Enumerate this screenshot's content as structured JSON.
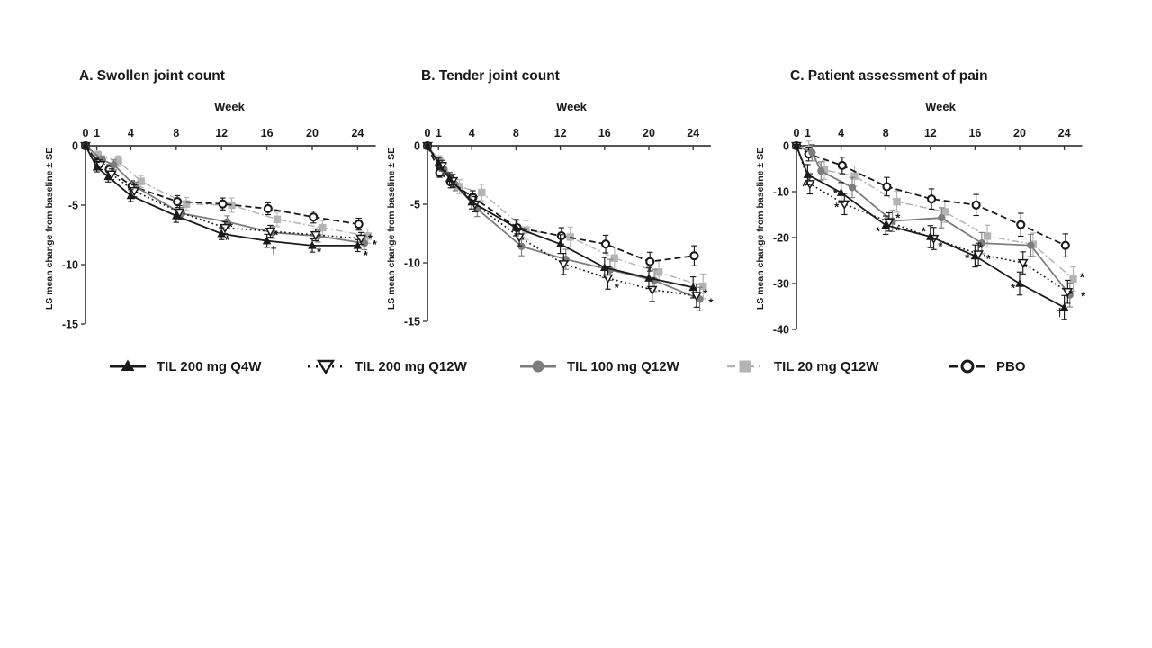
{
  "figure": {
    "background": "#ffffff",
    "colors": {
      "black": "#1a1a1a",
      "dark_gray": "#7d7d7d",
      "light_gray": "#b4b4b4",
      "axis": "#3c3c3c"
    },
    "legend": [
      {
        "label": "TIL 200 mg Q4W",
        "marker": "triangle-up-filled",
        "line": "solid",
        "color": "black"
      },
      {
        "label": "TIL 200 mg Q12W",
        "marker": "triangle-down-open",
        "line": "dotted",
        "color": "black"
      },
      {
        "label": "TIL 100 mg Q12W",
        "marker": "circle-filled",
        "line": "solid",
        "color": "dark_gray"
      },
      {
        "label": "TIL 20 mg Q12W",
        "marker": "square-filled",
        "line": "dashdot",
        "color": "light_gray"
      },
      {
        "label": "PBO",
        "marker": "circle-open",
        "line": "dashed",
        "color": "black"
      }
    ]
  },
  "chart_data": [
    {
      "type": "line",
      "title": "A. Swollen joint count",
      "xlabel": "Week",
      "ylabel": "LS mean change from baseline ± SE",
      "xticks": [
        0,
        1,
        4,
        8,
        12,
        16,
        20,
        24
      ],
      "yticks": [
        0,
        -5,
        -10,
        -15
      ],
      "xlim": [
        0,
        25.6
      ],
      "ylim": [
        -15,
        0
      ],
      "grid": false,
      "series": [
        {
          "name": "TIL 200 mg Q4W",
          "marker": "triangle-up-filled",
          "line": "solid",
          "color": "black",
          "x": [
            0,
            1,
            2,
            4,
            8,
            12,
            16,
            20,
            24
          ],
          "y": [
            0,
            -1.8,
            -2.6,
            -4.2,
            -5.9,
            -7.4,
            -8.0,
            -8.4,
            -8.4
          ],
          "se": [
            0.15,
            0.4,
            0.45,
            0.5,
            0.55,
            0.5,
            0.55,
            0.55,
            0.5
          ]
        },
        {
          "name": "TIL 200 mg Q12W",
          "marker": "triangle-down-open",
          "line": "dotted",
          "color": "black",
          "x": [
            0,
            1.3,
            2.3,
            4.3,
            8.3,
            12.3,
            16.3,
            20.3,
            24.3
          ],
          "y": [
            0,
            -1.6,
            -2.4,
            -3.8,
            -5.6,
            -6.9,
            -7.2,
            -7.5,
            -7.8
          ],
          "se": [
            0.15,
            0.4,
            0.45,
            0.5,
            0.55,
            0.5,
            0.5,
            0.5,
            0.5
          ]
        },
        {
          "name": "TIL 100 mg Q12W",
          "marker": "circle-filled",
          "line": "solid",
          "color": "dark_gray",
          "x": [
            0,
            1.5,
            2.5,
            4.5,
            8.5,
            12.5,
            16.5,
            20.5,
            24.6
          ],
          "y": [
            0,
            -1.2,
            -1.6,
            -3.5,
            -5.7,
            -6.4,
            -7.3,
            -7.6,
            -8.2
          ],
          "se": [
            0.15,
            0.35,
            0.4,
            0.45,
            0.5,
            0.5,
            0.5,
            0.5,
            0.55
          ]
        },
        {
          "name": "TIL 20 mg Q12W",
          "marker": "square-filled",
          "line": "dashdot",
          "color": "light_gray",
          "x": [
            0,
            1.1,
            2.9,
            4.9,
            8.9,
            12.9,
            16.9,
            20.9,
            24.9
          ],
          "y": [
            0,
            -0.8,
            -1.3,
            -3.0,
            -4.9,
            -5.0,
            -6.2,
            -6.9,
            -7.6
          ],
          "se": [
            0.15,
            0.35,
            0.45,
            0.5,
            0.55,
            0.6,
            0.6,
            0.6,
            0.6
          ]
        },
        {
          "name": "PBO",
          "marker": "circle-open",
          "line": "dashed",
          "color": "black",
          "x": [
            0,
            1.1,
            2.1,
            4.1,
            8.1,
            12.1,
            16.1,
            20.1,
            24.1
          ],
          "y": [
            0,
            -1.4,
            -2.0,
            -3.4,
            -4.7,
            -4.9,
            -5.3,
            -6.0,
            -6.6
          ],
          "se": [
            0.15,
            0.35,
            0.4,
            0.45,
            0.5,
            0.5,
            0.5,
            0.5,
            0.5
          ]
        }
      ],
      "annotations": [
        {
          "x": 12.8,
          "y": -6.8,
          "t": "*"
        },
        {
          "x": 12.5,
          "y": -7.9,
          "t": "*"
        },
        {
          "x": 16.8,
          "y": -7.5,
          "t": "*"
        },
        {
          "x": 16.6,
          "y": -8.8,
          "t": "†"
        },
        {
          "x": 20.6,
          "y": -8.9,
          "t": "*"
        },
        {
          "x": 25.1,
          "y": -7.8,
          "t": "*"
        },
        {
          "x": 25.5,
          "y": -8.3,
          "t": "*"
        },
        {
          "x": 24.7,
          "y": -9.2,
          "t": "*"
        }
      ]
    },
    {
      "type": "line",
      "title": "B. Tender joint count",
      "xlabel": "Week",
      "ylabel": "LS mean change from baseline ± SE",
      "xticks": [
        0,
        1,
        4,
        8,
        12,
        16,
        20,
        24
      ],
      "yticks": [
        0,
        -5,
        -10,
        -15
      ],
      "xlim": [
        0,
        25.6
      ],
      "ylim": [
        -15,
        0
      ],
      "grid": false,
      "series": [
        {
          "name": "TIL 200 mg Q4W",
          "marker": "triangle-up-filled",
          "line": "solid",
          "color": "black",
          "x": [
            0,
            1,
            2,
            4,
            8,
            12,
            16,
            20,
            24
          ],
          "y": [
            0,
            -1.5,
            -2.8,
            -4.8,
            -7.0,
            -8.4,
            -10.4,
            -11.3,
            -12.1
          ],
          "se": [
            0.15,
            0.45,
            0.5,
            0.6,
            0.7,
            0.8,
            0.85,
            0.9,
            0.9
          ]
        },
        {
          "name": "TIL 200 mg Q12W",
          "marker": "triangle-down-open",
          "line": "dotted",
          "color": "black",
          "x": [
            0,
            1.3,
            2.3,
            4.3,
            8.3,
            12.3,
            16.3,
            20.3,
            24.3
          ],
          "y": [
            0,
            -1.7,
            -3.0,
            -5.0,
            -7.8,
            -10.1,
            -11.3,
            -12.3,
            -12.8
          ],
          "se": [
            0.15,
            0.45,
            0.55,
            0.65,
            0.75,
            0.9,
            0.95,
            1.0,
            1.0
          ]
        },
        {
          "name": "TIL 100 mg Q12W",
          "marker": "circle-filled",
          "line": "solid",
          "color": "dark_gray",
          "x": [
            0,
            1.5,
            2.5,
            4.5,
            8.5,
            12.5,
            16.5,
            20.5,
            24.6
          ],
          "y": [
            0,
            -2.0,
            -3.3,
            -5.4,
            -8.6,
            -9.7,
            -10.6,
            -11.5,
            -13.1
          ],
          "se": [
            0.15,
            0.45,
            0.55,
            0.65,
            0.8,
            0.85,
            0.9,
            0.95,
            1.0
          ]
        },
        {
          "name": "TIL 20 mg Q12W",
          "marker": "square-filled",
          "line": "dashdot",
          "color": "light_gray",
          "x": [
            0,
            1.1,
            2.9,
            4.9,
            8.9,
            12.9,
            16.9,
            20.9,
            24.9
          ],
          "y": [
            0,
            -1.3,
            -3.5,
            -4.0,
            -7.2,
            -7.8,
            -9.6,
            -10.8,
            -12.0
          ],
          "se": [
            0.15,
            0.45,
            0.6,
            0.7,
            0.8,
            0.85,
            0.95,
            1.0,
            1.05
          ]
        },
        {
          "name": "PBO",
          "marker": "circle-open",
          "line": "dashed",
          "color": "black",
          "x": [
            0,
            1.1,
            2.1,
            4.1,
            8.1,
            12.1,
            16.1,
            20.1,
            24.1
          ],
          "y": [
            0,
            -2.3,
            -3.1,
            -4.4,
            -7.0,
            -7.7,
            -8.4,
            -9.9,
            -9.4
          ],
          "se": [
            0.15,
            0.4,
            0.5,
            0.55,
            0.65,
            0.7,
            0.75,
            0.8,
            0.85
          ]
        }
      ],
      "annotations": [
        {
          "x": 17.1,
          "y": -12.1,
          "t": "*"
        },
        {
          "x": 25.1,
          "y": -12.6,
          "t": "*"
        },
        {
          "x": 25.6,
          "y": -13.4,
          "t": "*"
        }
      ]
    },
    {
      "type": "line",
      "title": "C. Patient assessment of pain",
      "xlabel": "Week",
      "ylabel": "LS mean change from baseline ± SE",
      "xticks": [
        0,
        1,
        4,
        8,
        12,
        16,
        20,
        24
      ],
      "yticks": [
        0,
        -10,
        -20,
        -30,
        -40
      ],
      "xlim": [
        0,
        25.6
      ],
      "ylim": [
        -40,
        0
      ],
      "grid": false,
      "series": [
        {
          "name": "TIL 200 mg Q4W",
          "marker": "triangle-up-filled",
          "line": "solid",
          "color": "black",
          "x": [
            0,
            1,
            4,
            8,
            12,
            16,
            20,
            24
          ],
          "y": [
            0,
            -6.3,
            -10.2,
            -17.3,
            -19.8,
            -24.0,
            -30.0,
            -35.2
          ],
          "se": [
            0.3,
            2.2,
            2.2,
            2.0,
            2.4,
            2.4,
            2.5,
            2.6
          ]
        },
        {
          "name": "TIL 200 mg Q12W",
          "marker": "triangle-down-open",
          "line": "dotted",
          "color": "black",
          "x": [
            0,
            1.2,
            4.3,
            8.3,
            12.3,
            16.3,
            20.3,
            24.3
          ],
          "y": [
            0,
            -8.3,
            -12.7,
            -16.6,
            -20.2,
            -23.6,
            -25.5,
            -31.8
          ],
          "se": [
            0.3,
            2.2,
            2.3,
            2.0,
            2.4,
            2.4,
            2.4,
            2.5
          ]
        },
        {
          "name": "TIL 100 mg Q12W",
          "marker": "circle-filled",
          "line": "solid",
          "color": "dark_gray",
          "x": [
            0,
            1.4,
            2.2,
            5,
            8.6,
            13,
            16.6,
            21,
            24.5
          ],
          "y": [
            0,
            -1.5,
            -5.5,
            -9.1,
            -16.4,
            -15.7,
            -21.2,
            -21.7,
            -32.5
          ],
          "se": [
            0.3,
            1.8,
            2.0,
            2.2,
            2.3,
            2.2,
            2.3,
            2.4,
            2.6
          ]
        },
        {
          "name": "TIL 20 mg Q12W",
          "marker": "square-filled",
          "line": "dashdot",
          "color": "light_gray",
          "x": [
            0,
            1.1,
            2.5,
            5.2,
            9,
            13.3,
            17.1,
            21.2,
            24.8
          ],
          "y": [
            0,
            -0.8,
            -5.3,
            -6.6,
            -12.2,
            -14.4,
            -19.7,
            -21.5,
            -29.0
          ],
          "se": [
            0.3,
            1.8,
            2.0,
            2.2,
            2.3,
            2.3,
            2.4,
            2.5,
            2.6
          ]
        },
        {
          "name": "PBO",
          "marker": "circle-open",
          "line": "dashed",
          "color": "black",
          "x": [
            0,
            1.1,
            4.1,
            8.1,
            12.1,
            16.1,
            20.1,
            24.1
          ],
          "y": [
            0,
            -1.8,
            -4.3,
            -8.9,
            -11.6,
            -12.9,
            -17.2,
            -21.7
          ],
          "se": [
            0.3,
            1.5,
            1.8,
            2.0,
            2.2,
            2.3,
            2.5,
            2.5
          ]
        }
      ],
      "annotations": [
        {
          "x": 0.7,
          "y": -8.8,
          "t": "*"
        },
        {
          "x": 3.5,
          "y": -10.3,
          "t": "*"
        },
        {
          "x": 3.6,
          "y": -13.3,
          "t": "*"
        },
        {
          "x": 7.3,
          "y": -18.6,
          "t": "*"
        },
        {
          "x": 9.1,
          "y": -15.7,
          "t": "*"
        },
        {
          "x": 9.1,
          "y": -18.4,
          "t": "*"
        },
        {
          "x": 11.4,
          "y": -18.6,
          "t": "*"
        },
        {
          "x": 12.9,
          "y": -21.9,
          "t": "*"
        },
        {
          "x": 15.3,
          "y": -24.4,
          "t": "*"
        },
        {
          "x": 16.5,
          "y": -22.3,
          "t": "*"
        },
        {
          "x": 17.2,
          "y": -24.6,
          "t": "*"
        },
        {
          "x": 19.4,
          "y": -31.0,
          "t": "*"
        },
        {
          "x": 20.5,
          "y": -26.5,
          "t": "*"
        },
        {
          "x": 23.6,
          "y": -36.3,
          "t": "†"
        },
        {
          "x": 25.6,
          "y": -28.6,
          "t": "*"
        },
        {
          "x": 24.6,
          "y": -32.3,
          "t": "*"
        },
        {
          "x": 25.7,
          "y": -32.7,
          "t": "*"
        }
      ]
    }
  ]
}
